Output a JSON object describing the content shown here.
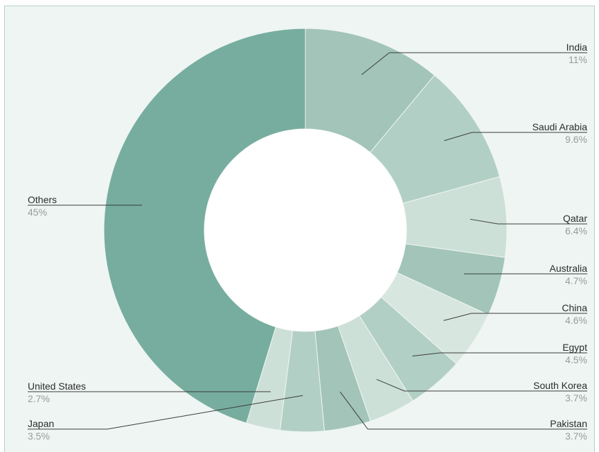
{
  "chart_data": {
    "type": "donut",
    "colors": {
      "dark": "#77ad9e",
      "mid": "#a2c4b9",
      "light": "#b2cfc5",
      "pale": "#cde0d8",
      "white": "#ffffff"
    },
    "slices": [
      {
        "name": "India",
        "label": "11%",
        "value": 11,
        "color": "#a2c4b9"
      },
      {
        "name": "Saudi Arabia",
        "label": "9.6%",
        "value": 9.6,
        "color": "#b2cfc5"
      },
      {
        "name": "Qatar",
        "label": "6.4%",
        "value": 6.4,
        "color": "#cde0d8"
      },
      {
        "name": "Australia",
        "label": "4.7%",
        "value": 4.7,
        "color": "#a2c4b9"
      },
      {
        "name": "China",
        "label": "4.6%",
        "value": 4.6,
        "color": "#d7e7e0"
      },
      {
        "name": "Egypt",
        "label": "4.5%",
        "value": 4.5,
        "color": "#b2cfc5"
      },
      {
        "name": "South Korea",
        "label": "3.7%",
        "value": 3.7,
        "color": "#cde0d8"
      },
      {
        "name": "Pakistan",
        "label": "3.7%",
        "value": 3.7,
        "color": "#a2c4b9"
      },
      {
        "name": "Japan",
        "label": "3.5%",
        "value": 3.5,
        "color": "#b2cfc5"
      },
      {
        "name": "United States",
        "label": "2.7%",
        "value": 2.7,
        "color": "#cde0d8"
      },
      {
        "name": "Others",
        "label": "45%",
        "value": 45,
        "color": "#77ad9e"
      }
    ]
  }
}
